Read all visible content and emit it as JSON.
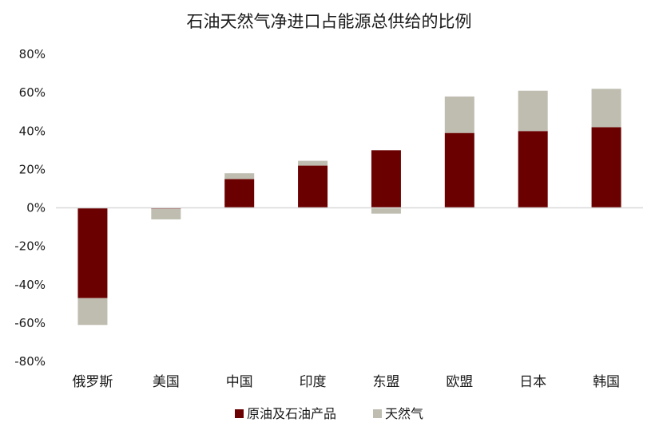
{
  "chart_data": {
    "type": "bar",
    "stacked": true,
    "title": "石油天然气净进口占能源总供给的比例",
    "xlabel": "",
    "ylabel": "",
    "categories": [
      "俄罗斯",
      "美国",
      "中国",
      "印度",
      "东盟",
      "欧盟",
      "日本",
      "韩国"
    ],
    "series": [
      {
        "name": "原油及石油产品",
        "color": "#6b0000",
        "values": [
          -47,
          -0.5,
          15,
          22,
          30,
          39,
          40,
          42
        ]
      },
      {
        "name": "天然气",
        "color": "#bfbdb0",
        "values": [
          -14,
          -5.5,
          3,
          2.5,
          -3,
          19,
          21,
          20
        ]
      }
    ],
    "ylim": [
      -80,
      80
    ],
    "yticks": [
      80,
      60,
      40,
      20,
      0,
      -20,
      -40,
      -60,
      -80
    ],
    "ytick_labels": [
      "80%",
      "60%",
      "40%",
      "20%",
      "0%",
      "-20%",
      "-40%",
      "-60%",
      "-80%"
    ],
    "grid": false,
    "legend": "bottom-center"
  }
}
